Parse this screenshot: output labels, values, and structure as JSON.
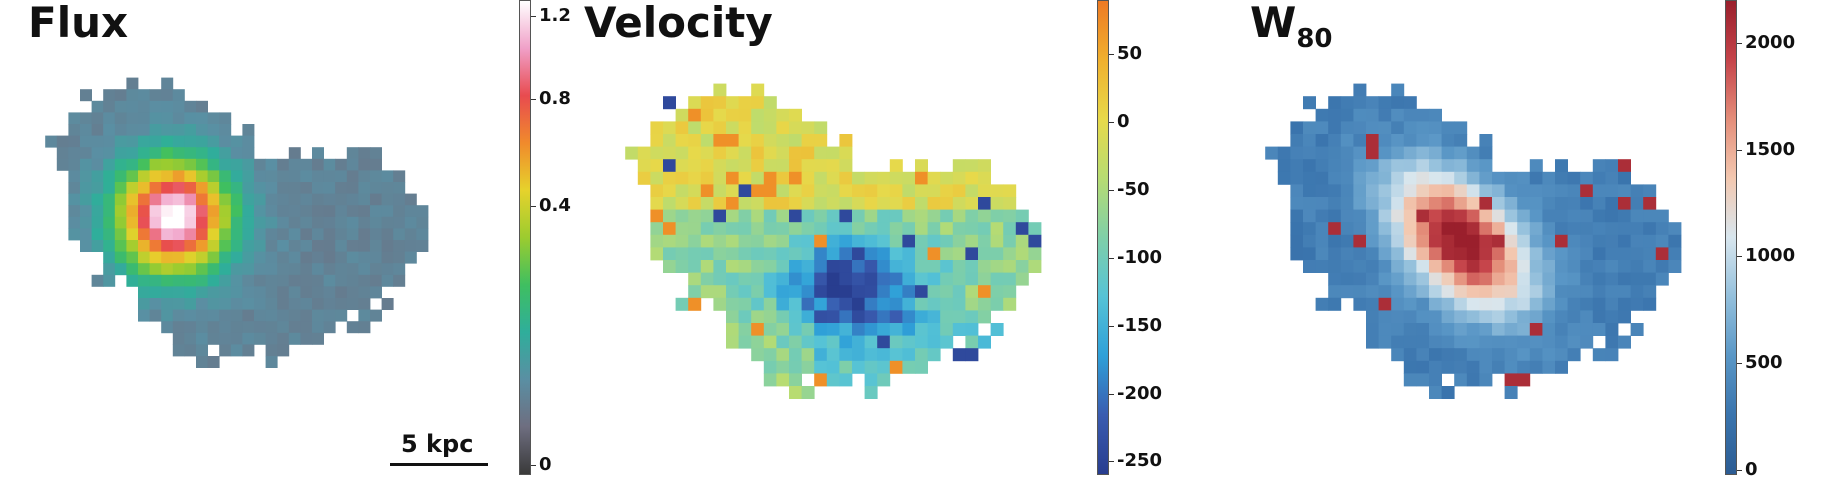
{
  "chart_data": [
    {
      "type": "heatmap",
      "title": "Flux",
      "colormap": [
        "#3a3a3a",
        "#6e6e80",
        "#5a8fa3",
        "#2fae9b",
        "#3fbf60",
        "#9ccc2f",
        "#e6d22c",
        "#f08a2c",
        "#e84b4f",
        "#f0a0c8",
        "#ffffff"
      ],
      "colorbar": {
        "ticks": [
          "1.2",
          "0.8",
          "0.4",
          "0"
        ],
        "range": [
          0,
          1.25
        ],
        "scale": "sqrt"
      },
      "scalebar_label": "5 kpc",
      "peak_value": 1.2,
      "background_value": 0.05
    },
    {
      "type": "heatmap",
      "title": "Velocity",
      "colormap": [
        "#283d8f",
        "#3a5cb0",
        "#2fa0d8",
        "#56c3d6",
        "#7fcfa8",
        "#b7dc72",
        "#e7d94a",
        "#f0b02e",
        "#ee7a24"
      ],
      "colorbar": {
        "ticks": [
          "50",
          "0",
          "-50",
          "-100",
          "-150",
          "-200",
          "-250"
        ],
        "range": [
          -260,
          90
        ]
      },
      "value_range_shown": [
        -250,
        60
      ]
    },
    {
      "type": "heatmap",
      "title": "W",
      "title_subscript": "80",
      "colormap": [
        "#2c5c93",
        "#3a74ad",
        "#5a97c6",
        "#94c0dc",
        "#d8e6ee",
        "#f3c8b0",
        "#e48e7a",
        "#c5444a",
        "#9a1f2c"
      ],
      "colorbar": {
        "ticks": [
          "2000",
          "1500",
          "1000",
          "500",
          "0"
        ],
        "range": [
          0,
          2200
        ]
      },
      "value_range_shown": [
        300,
        2150
      ]
    }
  ]
}
